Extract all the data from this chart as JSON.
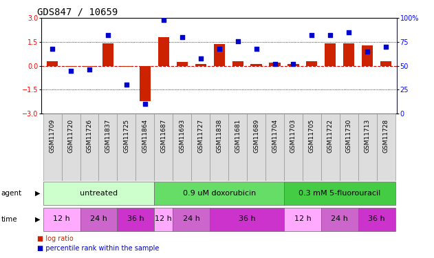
{
  "title": "GDS847 / 10659",
  "samples": [
    "GSM11709",
    "GSM11720",
    "GSM11726",
    "GSM11837",
    "GSM11725",
    "GSM11864",
    "GSM11687",
    "GSM11693",
    "GSM11727",
    "GSM11838",
    "GSM11681",
    "GSM11689",
    "GSM11704",
    "GSM11703",
    "GSM11705",
    "GSM11722",
    "GSM11730",
    "GSM11713",
    "GSM11728"
  ],
  "log_ratio": [
    0.28,
    -0.05,
    -0.07,
    1.4,
    -0.08,
    -2.2,
    1.8,
    0.25,
    0.12,
    1.35,
    0.28,
    0.1,
    0.2,
    0.1,
    0.27,
    1.4,
    1.4,
    1.3,
    0.28
  ],
  "percentile": [
    68,
    45,
    46,
    82,
    30,
    10,
    98,
    80,
    58,
    68,
    76,
    68,
    52,
    52,
    82,
    82,
    85,
    65,
    70
  ],
  "bar_color": "#cc2200",
  "dot_color": "#0000cc",
  "ylim_left": [
    -3,
    3
  ],
  "ylim_right": [
    0,
    100
  ],
  "yticks_left": [
    -3,
    -1.5,
    0,
    1.5,
    3
  ],
  "yticks_right": [
    0,
    25,
    50,
    75,
    100
  ],
  "hlines": [
    1.5,
    -1.5
  ],
  "zero_line_color": "#cc0000",
  "agent_groups": [
    {
      "label": "untreated",
      "start": 0,
      "end": 6,
      "color": "#ccffcc"
    },
    {
      "label": "0.9 uM doxorubicin",
      "start": 6,
      "end": 13,
      "color": "#66dd66"
    },
    {
      "label": "0.3 mM 5-fluorouracil",
      "start": 13,
      "end": 19,
      "color": "#44cc44"
    }
  ],
  "time_groups": [
    {
      "label": "12 h",
      "start": 0,
      "end": 2,
      "color": "#ffaaff"
    },
    {
      "label": "24 h",
      "start": 2,
      "end": 4,
      "color": "#cc66cc"
    },
    {
      "label": "36 h",
      "start": 4,
      "end": 6,
      "color": "#cc33cc"
    },
    {
      "label": "12 h",
      "start": 6,
      "end": 7,
      "color": "#ffaaff"
    },
    {
      "label": "24 h",
      "start": 7,
      "end": 9,
      "color": "#cc66cc"
    },
    {
      "label": "36 h",
      "start": 9,
      "end": 13,
      "color": "#cc33cc"
    },
    {
      "label": "12 h",
      "start": 13,
      "end": 15,
      "color": "#ffaaff"
    },
    {
      "label": "24 h",
      "start": 15,
      "end": 17,
      "color": "#cc66cc"
    },
    {
      "label": "36 h",
      "start": 17,
      "end": 19,
      "color": "#cc33cc"
    }
  ],
  "legend_items": [
    {
      "label": "log ratio",
      "color": "#cc2200"
    },
    {
      "label": "percentile rank within the sample",
      "color": "#0000cc"
    }
  ],
  "agent_label_fontsize": 8,
  "time_label_fontsize": 8,
  "sample_label_fontsize": 6.5,
  "tick_label_fontsize": 7,
  "title_fontsize": 10,
  "bar_width": 0.6
}
